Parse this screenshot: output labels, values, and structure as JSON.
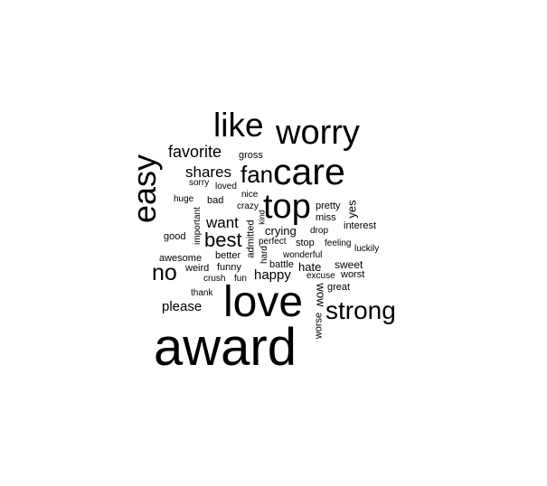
{
  "wordcloud": {
    "words": [
      {
        "text": "award"
      },
      {
        "text": "love"
      },
      {
        "text": "care"
      },
      {
        "text": "worry"
      },
      {
        "text": "like"
      },
      {
        "text": "easy"
      },
      {
        "text": "top"
      },
      {
        "text": "strong"
      },
      {
        "text": "fan"
      },
      {
        "text": "no"
      },
      {
        "text": "best"
      },
      {
        "text": "favorite"
      },
      {
        "text": "shares"
      },
      {
        "text": "want"
      },
      {
        "text": "happy"
      },
      {
        "text": "please"
      },
      {
        "text": "crying"
      },
      {
        "text": "hate"
      },
      {
        "text": "sweet"
      },
      {
        "text": "yes"
      },
      {
        "text": "gross"
      },
      {
        "text": "sorry"
      },
      {
        "text": "loved"
      },
      {
        "text": "nice"
      },
      {
        "text": "huge"
      },
      {
        "text": "bad"
      },
      {
        "text": "crazy"
      },
      {
        "text": "important"
      },
      {
        "text": "pretty"
      },
      {
        "text": "miss"
      },
      {
        "text": "good"
      },
      {
        "text": "kind"
      },
      {
        "text": "interest"
      },
      {
        "text": "admitted"
      },
      {
        "text": "perfect"
      },
      {
        "text": "stop"
      },
      {
        "text": "drop"
      },
      {
        "text": "feeling"
      },
      {
        "text": "luckily"
      },
      {
        "text": "awesome"
      },
      {
        "text": "better"
      },
      {
        "text": "wonderful"
      },
      {
        "text": "hard"
      },
      {
        "text": "battle"
      },
      {
        "text": "weird"
      },
      {
        "text": "funny"
      },
      {
        "text": "excuse"
      },
      {
        "text": "worst"
      },
      {
        "text": "crush"
      },
      {
        "text": "fun"
      },
      {
        "text": "wow"
      },
      {
        "text": "great"
      },
      {
        "text": "thank"
      },
      {
        "text": "worse"
      }
    ]
  }
}
